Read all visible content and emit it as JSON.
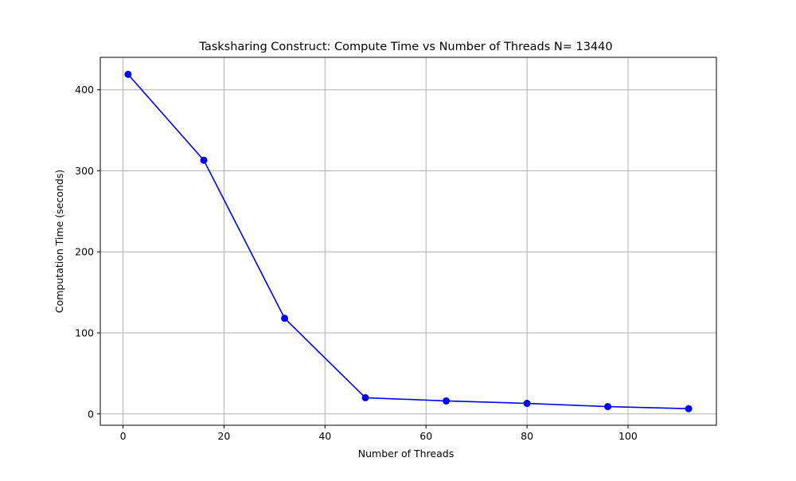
{
  "chart_data": {
    "type": "line",
    "title": "Tasksharing Construct: Compute Time vs Number of Threads  N= 13440",
    "xlabel": "Number of Threads",
    "ylabel": "Computation Time (seconds)",
    "x": [
      1,
      16,
      32,
      48,
      64,
      80,
      96,
      112
    ],
    "series": [
      {
        "values": [
          419,
          313,
          118,
          20,
          16,
          13,
          9,
          6.5
        ]
      }
    ],
    "xlim": [
      -4.5,
      117.5
    ],
    "ylim": [
      -14,
      440
    ],
    "xticks": [
      0,
      20,
      40,
      60,
      80,
      100
    ],
    "yticks": [
      0,
      100,
      200,
      300,
      400
    ],
    "xtick_labels": [
      "0",
      "20",
      "40",
      "60",
      "80",
      "100"
    ],
    "ytick_labels": [
      "0",
      "100",
      "200",
      "300",
      "400"
    ],
    "grid": true,
    "legend": "none",
    "colors": {
      "line": "#0000ff",
      "marker": "#0000ff",
      "grid": "#b0b0b0",
      "axes": "#000000",
      "background": "#ffffff"
    }
  }
}
